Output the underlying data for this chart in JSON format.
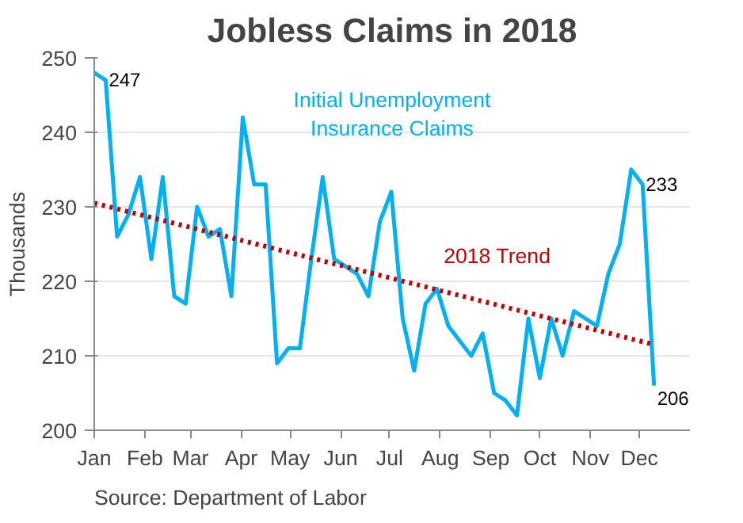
{
  "chart_data": {
    "type": "line",
    "title": "Jobless Claims in 2018",
    "ylabel": "Thousands",
    "x": [
      "2018-01-01",
      "2018-01-08",
      "2018-01-15",
      "2018-01-22",
      "2018-01-29",
      "2018-02-05",
      "2018-02-12",
      "2018-02-19",
      "2018-02-26",
      "2018-03-05",
      "2018-03-12",
      "2018-03-19",
      "2018-03-26",
      "2018-04-02",
      "2018-04-09",
      "2018-04-16",
      "2018-04-23",
      "2018-04-30",
      "2018-05-07",
      "2018-05-14",
      "2018-05-21",
      "2018-05-28",
      "2018-06-04",
      "2018-06-11",
      "2018-06-18",
      "2018-06-25",
      "2018-07-02",
      "2018-07-09",
      "2018-07-16",
      "2018-07-23",
      "2018-07-30",
      "2018-08-06",
      "2018-08-13",
      "2018-08-20",
      "2018-08-27",
      "2018-09-03",
      "2018-09-10",
      "2018-09-17",
      "2018-09-24",
      "2018-10-01",
      "2018-10-08",
      "2018-10-15",
      "2018-10-22",
      "2018-10-29",
      "2018-11-05",
      "2018-11-12",
      "2018-11-19",
      "2018-11-26",
      "2018-12-03",
      "2018-12-10"
    ],
    "series": [
      {
        "name": "Initial Unemployment Insurance Claims",
        "color": "#00b0f0",
        "values": [
          248,
          247,
          226,
          229,
          234,
          223,
          234,
          218,
          217,
          230,
          226,
          227,
          218,
          242,
          233,
          233,
          209,
          211,
          211,
          223,
          234,
          223,
          222,
          221,
          218,
          228,
          232,
          215,
          208,
          217,
          219,
          214,
          212,
          210,
          213,
          205,
          204,
          202,
          215,
          207,
          215,
          210,
          216,
          215,
          214,
          221,
          225,
          235,
          233,
          206
        ],
        "value_labels": [
          null,
          "247",
          null,
          null,
          null,
          null,
          null,
          null,
          null,
          null,
          null,
          null,
          null,
          null,
          null,
          null,
          null,
          null,
          null,
          null,
          null,
          null,
          null,
          null,
          null,
          null,
          null,
          null,
          null,
          null,
          null,
          null,
          null,
          null,
          null,
          null,
          null,
          null,
          null,
          null,
          null,
          null,
          null,
          null,
          null,
          null,
          null,
          null,
          "233",
          "206"
        ]
      },
      {
        "name": "2018 Trend",
        "type": "line",
        "color": "#c00000",
        "line_style": "dotted",
        "x": [
          "2018-01-01",
          "2018-12-10"
        ],
        "values": [
          230.5,
          211.5
        ]
      }
    ],
    "xlim": [
      "2018-01-01",
      "2019-01-01"
    ],
    "xticks": [
      {
        "value": "2018-01-01",
        "label": "Jan"
      },
      {
        "value": "2018-02-01",
        "label": "Feb"
      },
      {
        "value": "2018-03-01",
        "label": "Mar"
      },
      {
        "value": "2018-04-01",
        "label": "Apr"
      },
      {
        "value": "2018-05-01",
        "label": "May"
      },
      {
        "value": "2018-06-01",
        "label": "Jun"
      },
      {
        "value": "2018-07-01",
        "label": "Jul"
      },
      {
        "value": "2018-08-01",
        "label": "Aug"
      },
      {
        "value": "2018-09-01",
        "label": "Sep"
      },
      {
        "value": "2018-10-01",
        "label": "Oct"
      },
      {
        "value": "2018-11-01",
        "label": "Nov"
      },
      {
        "value": "2018-12-01",
        "label": "Dec"
      }
    ],
    "ylim": [
      200,
      250
    ],
    "yticks": [
      200,
      210,
      220,
      230,
      240,
      250
    ],
    "grid": "y",
    "marker": "none",
    "annotations": [
      "Source: Department of Labor"
    ]
  }
}
